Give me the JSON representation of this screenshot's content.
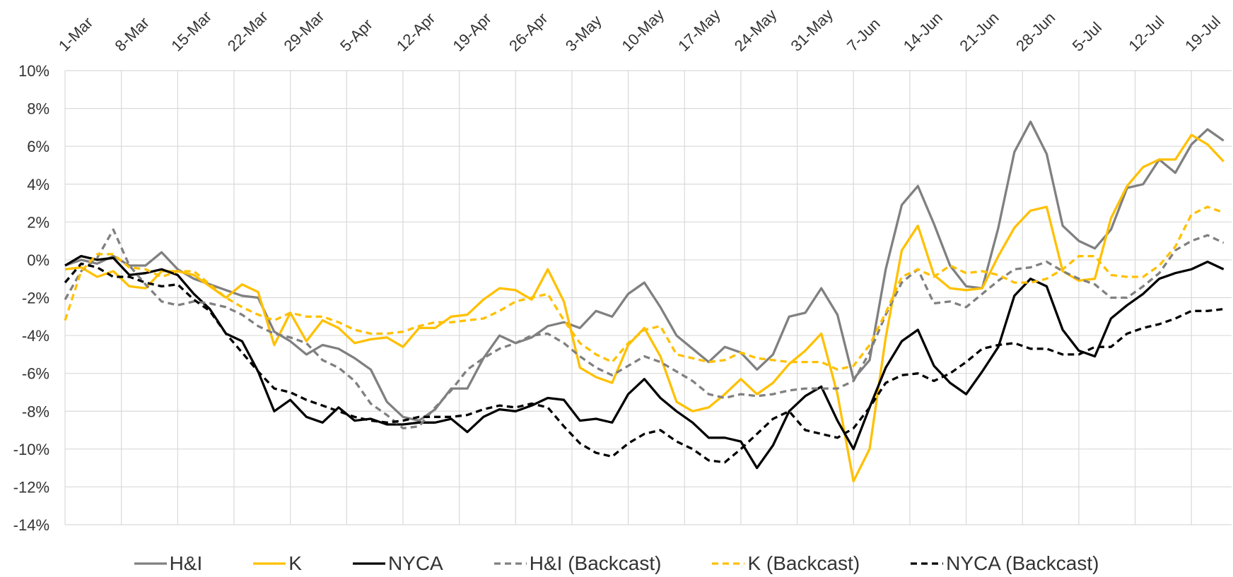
{
  "chart_data": {
    "type": "line",
    "x": [
      0,
      2,
      4,
      6,
      8,
      10,
      12,
      14,
      16,
      18,
      20,
      22,
      24,
      26,
      28,
      30,
      32,
      34,
      36,
      38,
      40,
      42,
      44,
      46,
      48,
      50,
      52,
      54,
      56,
      58,
      60,
      62,
      64,
      66,
      68,
      70,
      72,
      74,
      76,
      78,
      80,
      82,
      84,
      86,
      88,
      90,
      92,
      94,
      96,
      98,
      100,
      102,
      104,
      106,
      108,
      110,
      112,
      114,
      116,
      118,
      120,
      122,
      124,
      126,
      128,
      130,
      132,
      134,
      136,
      138,
      140,
      142,
      144
    ],
    "xlim": [
      0,
      145
    ],
    "xticks": [
      {
        "value": 0,
        "label": "1-Mar"
      },
      {
        "value": 7,
        "label": "8-Mar"
      },
      {
        "value": 14,
        "label": "15-Mar"
      },
      {
        "value": 21,
        "label": "22-Mar"
      },
      {
        "value": 28,
        "label": "29-Mar"
      },
      {
        "value": 35,
        "label": "5-Apr"
      },
      {
        "value": 42,
        "label": "12-Apr"
      },
      {
        "value": 49,
        "label": "19-Apr"
      },
      {
        "value": 56,
        "label": "26-Apr"
      },
      {
        "value": 63,
        "label": "3-May"
      },
      {
        "value": 70,
        "label": "10-May"
      },
      {
        "value": 77,
        "label": "17-May"
      },
      {
        "value": 84,
        "label": "24-May"
      },
      {
        "value": 91,
        "label": "31-May"
      },
      {
        "value": 98,
        "label": "7-Jun"
      },
      {
        "value": 105,
        "label": "14-Jun"
      },
      {
        "value": 112,
        "label": "21-Jun"
      },
      {
        "value": 119,
        "label": "28-Jun"
      },
      {
        "value": 126,
        "label": "5-Jul"
      },
      {
        "value": 133,
        "label": "12-Jul"
      },
      {
        "value": 140,
        "label": "19-Jul"
      }
    ],
    "ylim": [
      -14,
      10
    ],
    "yticks": [
      {
        "value": -14,
        "label": "-14%"
      },
      {
        "value": -12,
        "label": "-12%"
      },
      {
        "value": -10,
        "label": "-10%"
      },
      {
        "value": -8,
        "label": "-8%"
      },
      {
        "value": -6,
        "label": "-6%"
      },
      {
        "value": -4,
        "label": "-4%"
      },
      {
        "value": -2,
        "label": "-2%"
      },
      {
        "value": 0,
        "label": "0%"
      },
      {
        "value": 2,
        "label": "2%"
      },
      {
        "value": 4,
        "label": "4%"
      },
      {
        "value": 6,
        "label": "6%"
      },
      {
        "value": 8,
        "label": "8%"
      },
      {
        "value": 10,
        "label": "10%"
      }
    ],
    "grid": true,
    "legend": "bottom",
    "series": [
      {
        "name": "H&I",
        "color": "#808080",
        "dashed": false,
        "values": [
          -0.3,
          0,
          -0.2,
          0.2,
          -0.3,
          -0.3,
          0.4,
          -0.5,
          -1.0,
          -1.3,
          -1.6,
          -1.9,
          -2.0,
          -3.8,
          -4.3,
          -5.0,
          -4.5,
          -4.7,
          -5.2,
          -5.8,
          -7.5,
          -8.3,
          -8.5,
          -7.9,
          -6.8,
          -6.8,
          -5.2,
          -4.0,
          -4.4,
          -4.1,
          -3.5,
          -3.3,
          -3.6,
          -2.7,
          -3.0,
          -1.8,
          -1.2,
          -2.5,
          -4.0,
          -4.7,
          -5.4,
          -4.6,
          -4.9,
          -5.8,
          -5.0,
          -3.0,
          -2.8,
          -1.5,
          -2.9,
          -6.3,
          -5.3,
          -0.5,
          2.9,
          3.9,
          1.9,
          -0.3,
          -1.4,
          -1.5,
          1.7,
          5.7,
          7.3,
          5.6,
          1.8,
          1.0,
          0.6,
          1.6,
          3.8,
          4.0,
          5.3,
          4.6,
          6.1,
          6.9,
          6.3
        ]
      },
      {
        "name": "K",
        "color": "#FFC000",
        "dashed": false,
        "values": [
          -0.5,
          -0.4,
          -0.9,
          -0.6,
          -1.4,
          -1.5,
          -0.6,
          -0.6,
          -0.8,
          -1.4,
          -2.0,
          -1.3,
          -1.7,
          -4.5,
          -2.8,
          -4.3,
          -3.2,
          -3.6,
          -4.4,
          -4.2,
          -4.1,
          -4.6,
          -3.6,
          -3.6,
          -3.0,
          -2.9,
          -2.1,
          -1.5,
          -1.6,
          -2.1,
          -0.5,
          -2.2,
          -5.7,
          -6.2,
          -6.5,
          -4.5,
          -3.6,
          -5.1,
          -7.5,
          -8.0,
          -7.8,
          -7.1,
          -6.3,
          -7.1,
          -6.5,
          -5.5,
          -4.8,
          -3.9,
          -7.1,
          -11.7,
          -10.0,
          -4.1,
          0.5,
          1.8,
          -0.8,
          -1.5,
          -1.6,
          -1.5,
          0.2,
          1.7,
          2.6,
          2.8,
          -0.6,
          -1.1,
          -1.0,
          2.2,
          3.9,
          4.9,
          5.3,
          5.3,
          6.6,
          6.1,
          5.2
        ]
      },
      {
        "name": "NYCA",
        "color": "#000000",
        "dashed": false,
        "values": [
          -0.3,
          0.2,
          0,
          0.1,
          -0.8,
          -0.7,
          -0.5,
          -0.8,
          -1.8,
          -2.6,
          -3.9,
          -4.3,
          -5.9,
          -8.0,
          -7.4,
          -8.3,
          -8.6,
          -7.8,
          -8.5,
          -8.4,
          -8.7,
          -8.7,
          -8.6,
          -8.6,
          -8.4,
          -9.1,
          -8.3,
          -7.9,
          -8.0,
          -7.7,
          -7.3,
          -7.4,
          -8.5,
          -8.4,
          -8.6,
          -7.1,
          -6.3,
          -7.3,
          -8.0,
          -8.6,
          -9.4,
          -9.4,
          -9.6,
          -11.0,
          -9.8,
          -8.0,
          -7.2,
          -6.7,
          -8.5,
          -10.0,
          -7.8,
          -5.7,
          -4.3,
          -3.7,
          -5.6,
          -6.5,
          -7.1,
          -5.9,
          -4.6,
          -1.9,
          -1.0,
          -1.4,
          -3.7,
          -4.8,
          -5.1,
          -3.1,
          -2.4,
          -1.8,
          -1.0,
          -0.7,
          -0.5,
          -0.1,
          -0.5
        ]
      },
      {
        "name": "H&I (Backcast)",
        "color": "#808080",
        "dashed": true,
        "values": [
          -2.1,
          -0.6,
          0.1,
          1.6,
          -0.3,
          -1.3,
          -2.2,
          -2.4,
          -2.2,
          -2.3,
          -2.5,
          -2.9,
          -3.5,
          -3.9,
          -4.1,
          -4.4,
          -5.3,
          -5.7,
          -6.4,
          -7.6,
          -8.2,
          -8.9,
          -8.8,
          -7.8,
          -6.9,
          -5.8,
          -5.2,
          -4.7,
          -4.4,
          -4.0,
          -3.9,
          -4.4,
          -5.1,
          -5.7,
          -6.1,
          -5.6,
          -5.1,
          -5.4,
          -5.9,
          -6.4,
          -7.1,
          -7.3,
          -7.1,
          -7.2,
          -7.1,
          -6.9,
          -6.8,
          -6.8,
          -6.8,
          -6.4,
          -4.9,
          -2.9,
          -1.2,
          -0.5,
          -2.3,
          -2.2,
          -2.5,
          -1.8,
          -1.1,
          -0.5,
          -0.4,
          -0.1,
          -0.6,
          -1.0,
          -1.3,
          -2.0,
          -2.0,
          -1.4,
          -0.7,
          0.5,
          1.0,
          1.3,
          0.9
        ]
      },
      {
        "name": "K (Backcast)",
        "color": "#FFC000",
        "dashed": true,
        "values": [
          -3.2,
          -0.6,
          0.3,
          0.3,
          -0.4,
          -0.5,
          -0.9,
          -0.6,
          -0.6,
          -1.3,
          -2.0,
          -2.5,
          -2.9,
          -3.2,
          -2.8,
          -3.0,
          -3.0,
          -3.3,
          -3.7,
          -3.9,
          -3.9,
          -3.8,
          -3.5,
          -3.3,
          -3.3,
          -3.2,
          -3.1,
          -2.7,
          -2.2,
          -2.0,
          -1.8,
          -3.2,
          -4.4,
          -5.0,
          -5.4,
          -4.4,
          -3.7,
          -3.5,
          -5.0,
          -5.2,
          -5.4,
          -5.3,
          -4.9,
          -5.2,
          -5.3,
          -5.4,
          -5.4,
          -5.4,
          -5.8,
          -5.6,
          -4.5,
          -2.8,
          -0.9,
          -0.5,
          -0.9,
          -0.3,
          -0.7,
          -0.6,
          -0.8,
          -1.2,
          -1.2,
          -1.0,
          -0.5,
          0.2,
          0.2,
          -0.8,
          -0.9,
          -0.9,
          -0.3,
          0.7,
          2.4,
          2.8,
          2.5
        ]
      },
      {
        "name": "NYCA (Backcast)",
        "color": "#000000",
        "dashed": true,
        "values": [
          -1.2,
          -0.2,
          -0.4,
          -0.9,
          -0.9,
          -1.2,
          -1.4,
          -1.3,
          -2.1,
          -2.7,
          -3.9,
          -4.9,
          -5.9,
          -6.8,
          -7.0,
          -7.4,
          -7.7,
          -8.0,
          -8.3,
          -8.5,
          -8.6,
          -8.5,
          -8.3,
          -8.3,
          -8.3,
          -8.2,
          -7.9,
          -7.7,
          -7.8,
          -7.6,
          -7.8,
          -8.8,
          -9.7,
          -10.2,
          -10.4,
          -9.7,
          -9.2,
          -9.0,
          -9.6,
          -10.0,
          -10.6,
          -10.7,
          -10.0,
          -9.2,
          -8.4,
          -8.0,
          -9.0,
          -9.2,
          -9.4,
          -8.9,
          -7.8,
          -6.5,
          -6.1,
          -6.0,
          -6.4,
          -6.0,
          -5.4,
          -4.7,
          -4.5,
          -4.4,
          -4.7,
          -4.7,
          -5.0,
          -5.0,
          -4.6,
          -4.6,
          -3.9,
          -3.6,
          -3.4,
          -3.1,
          -2.7,
          -2.7,
          -2.6
        ]
      }
    ]
  }
}
